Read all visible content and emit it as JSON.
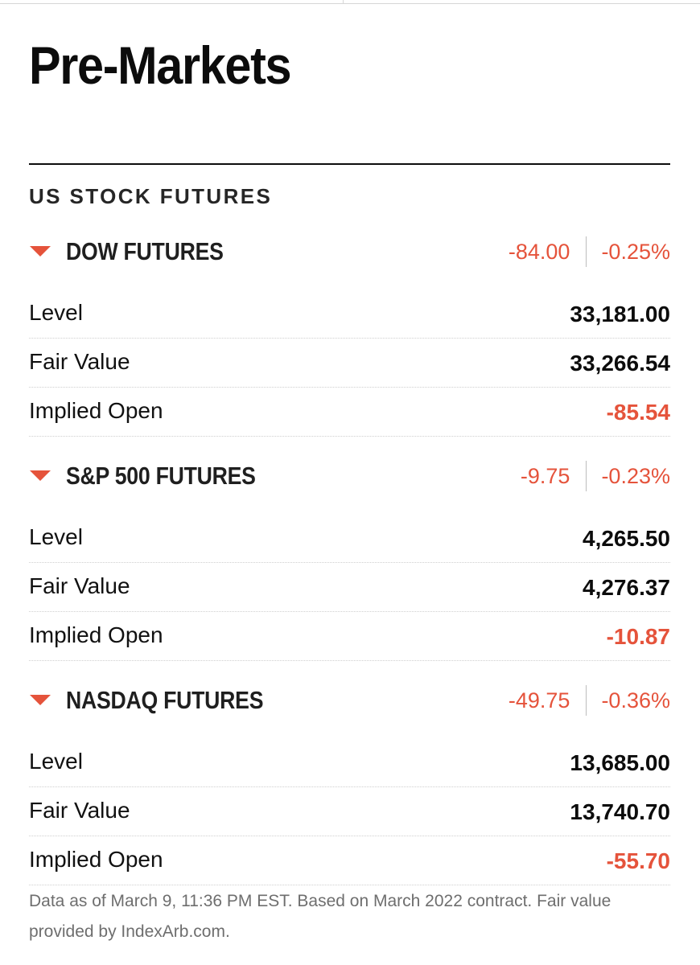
{
  "page": {
    "title": "Pre-Markets"
  },
  "section": {
    "title": "US STOCK FUTURES"
  },
  "colors": {
    "negative": "#e5533b",
    "text": "#0c0c0c",
    "muted": "#6e6e6e"
  },
  "futures": [
    {
      "name": "DOW FUTURES",
      "direction_icon": "down-triangle-icon",
      "change": "-84.00",
      "change_pct": "-0.25%",
      "rows": [
        {
          "label": "Level",
          "value": "33,181.00"
        },
        {
          "label": "Fair Value",
          "value": "33,266.54"
        },
        {
          "label": "Implied Open",
          "value": "-85.54"
        }
      ]
    },
    {
      "name": "S&P 500 FUTURES",
      "direction_icon": "down-triangle-icon",
      "change": "-9.75",
      "change_pct": "-0.23%",
      "rows": [
        {
          "label": "Level",
          "value": "4,265.50"
        },
        {
          "label": "Fair Value",
          "value": "4,276.37"
        },
        {
          "label": "Implied Open",
          "value": "-10.87"
        }
      ]
    },
    {
      "name": "NASDAQ FUTURES",
      "direction_icon": "down-triangle-icon",
      "change": "-49.75",
      "change_pct": "-0.36%",
      "rows": [
        {
          "label": "Level",
          "value": "13,685.00"
        },
        {
          "label": "Fair Value",
          "value": "13,740.70"
        },
        {
          "label": "Implied Open",
          "value": "-55.70"
        }
      ]
    }
  ],
  "footnote": "Data as of March 9, 11:36 PM EST. Based on March 2022 contract. Fair value provided by IndexArb.com."
}
